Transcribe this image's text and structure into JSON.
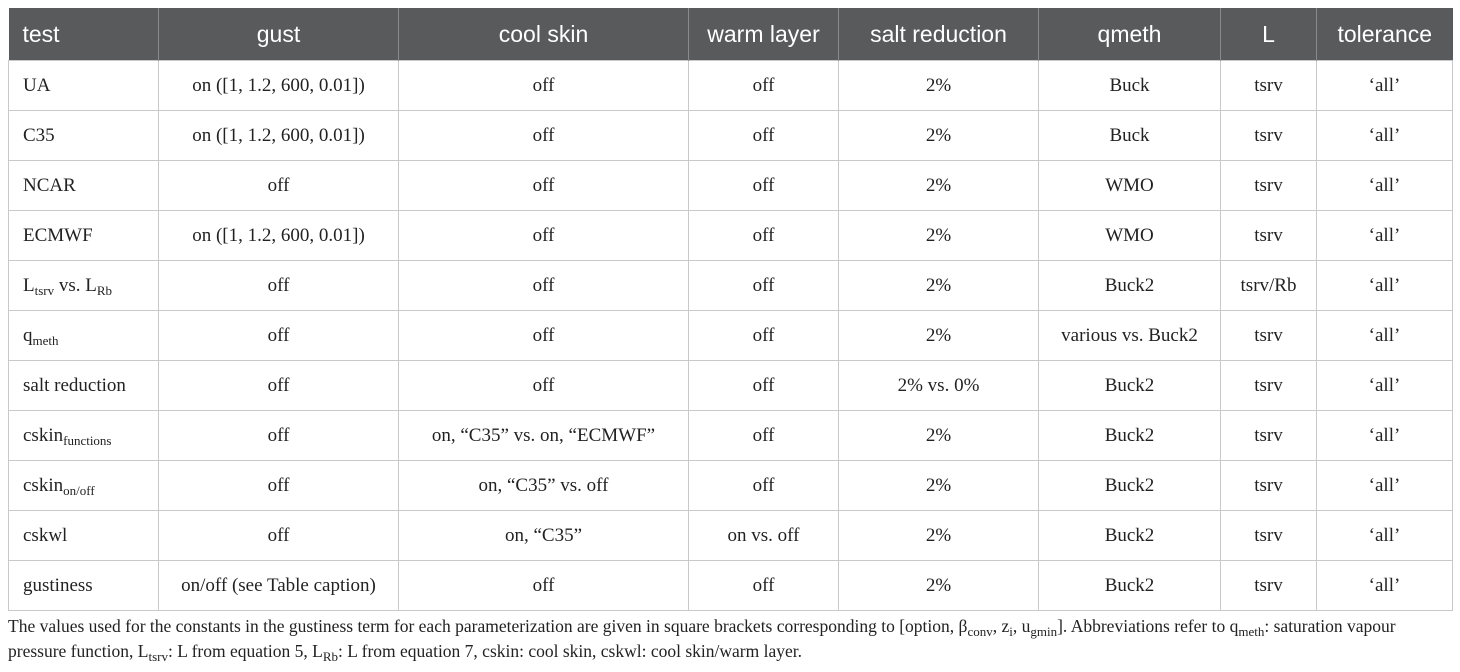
{
  "table": {
    "header": [
      "test",
      "gust",
      "cool skin",
      "warm layer",
      "salt reduction",
      "qmeth",
      "L",
      "tolerance"
    ],
    "rows": [
      [
        "UA",
        "on ([1, 1.2, 600, 0.01])",
        "off",
        "off",
        "2%",
        "Buck",
        "tsrv",
        "‘all’"
      ],
      [
        "C35",
        "on ([1, 1.2, 600, 0.01])",
        "off",
        "off",
        "2%",
        "Buck",
        "tsrv",
        "‘all’"
      ],
      [
        "NCAR",
        "off",
        "off",
        "off",
        "2%",
        "WMO",
        "tsrv",
        "‘all’"
      ],
      [
        "ECMWF",
        "on ([1, 1.2, 600, 0.01])",
        "off",
        "off",
        "2%",
        "WMO",
        "tsrv",
        "‘all’"
      ],
      [
        [
          "L",
          "tsrv",
          " vs. L",
          "Rb"
        ],
        "off",
        "off",
        "off",
        "2%",
        "Buck2",
        "tsrv/Rb",
        "‘all’"
      ],
      [
        [
          "q",
          "meth"
        ],
        "off",
        "off",
        "off",
        "2%",
        "various vs. Buck2",
        "tsrv",
        "‘all’"
      ],
      [
        "salt reduction",
        "off",
        "off",
        "off",
        "2% vs. 0%",
        "Buck2",
        "tsrv",
        "‘all’"
      ],
      [
        [
          "cskin",
          "functions"
        ],
        "off",
        "on, “C35” vs. on, “ECMWF”",
        "off",
        "2%",
        "Buck2",
        "tsrv",
        "‘all’"
      ],
      [
        [
          "cskin",
          "on/off"
        ],
        "off",
        "on, “C35” vs. off",
        "off",
        "2%",
        "Buck2",
        "tsrv",
        "‘all’"
      ],
      [
        "cskwl",
        "off",
        "on, “C35”",
        "on vs. off",
        "2%",
        "Buck2",
        "tsrv",
        "‘all’"
      ],
      [
        "gustiness",
        "on/off (see Table caption)",
        "off",
        "off",
        "2%",
        "Buck2",
        "tsrv",
        "‘all’"
      ]
    ],
    "caption": [
      "The values used for the constants in the gustiness term for each parameterization are given in square brackets corresponding to [option, β",
      "conv",
      ", z",
      "i",
      ", u",
      "gmin",
      "]. Abbreviations refer to q",
      "meth",
      ": saturation vapour pressure function, L",
      "tsrv",
      ": L from equation 5, L",
      "Rb",
      ": L from equation 7, cskin: cool skin, cskwl: cool skin/warm layer."
    ]
  }
}
